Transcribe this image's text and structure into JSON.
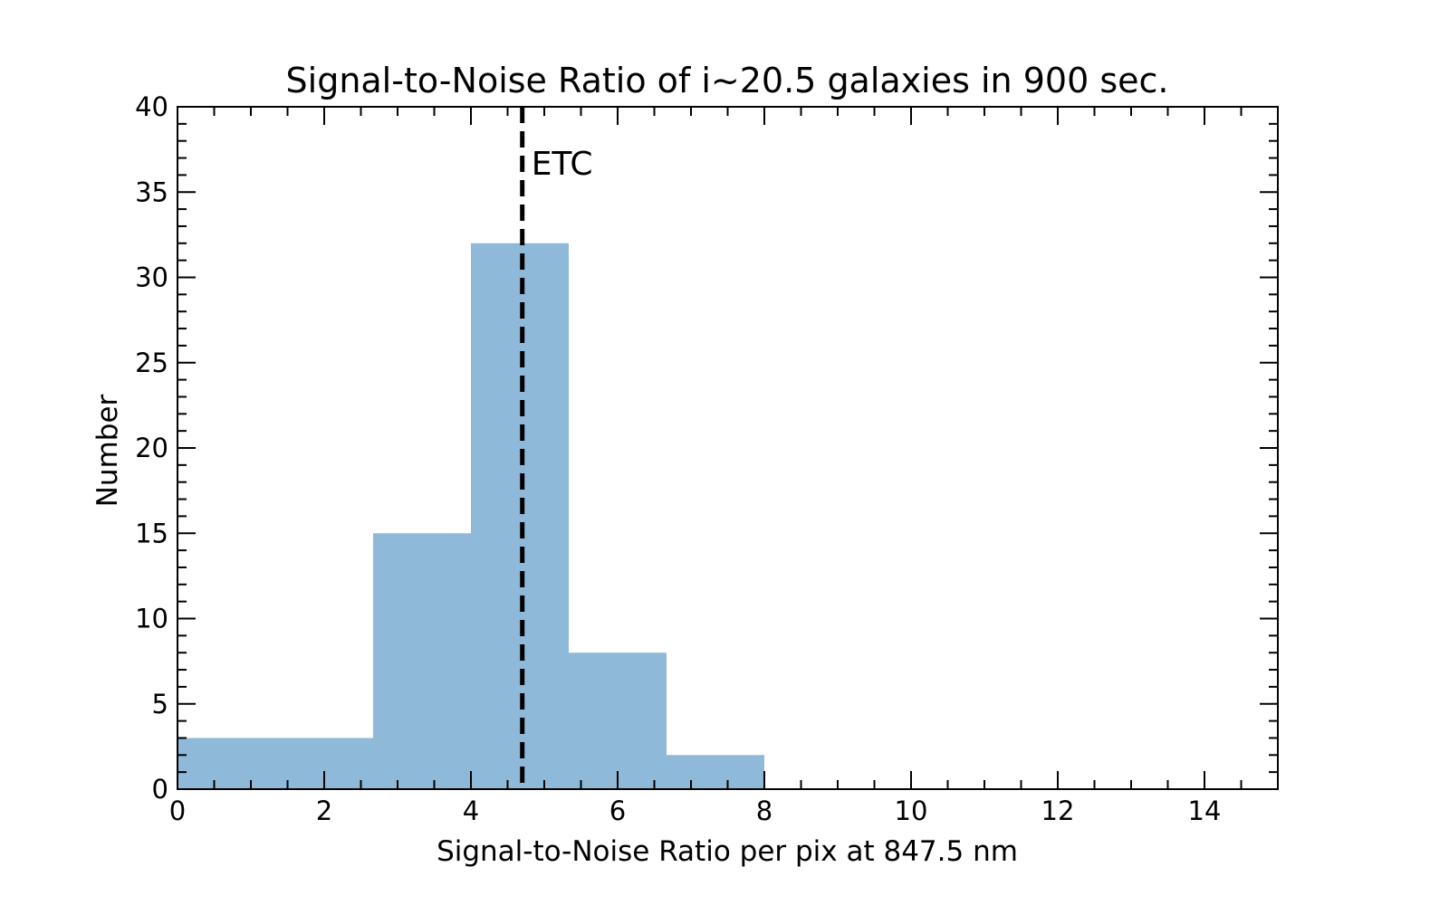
{
  "chart_data": {
    "type": "bar",
    "title": "Signal-to-Noise Ratio of i~20.5 galaxies in 900 sec.",
    "xlabel": "Signal-to-Noise Ratio per pix at 847.5 nm",
    "ylabel": "Number",
    "xlim": [
      0,
      15
    ],
    "ylim": [
      0,
      40
    ],
    "bin_edges": [
      0,
      1.3333,
      2.6667,
      4.0,
      5.3333,
      6.6667,
      8.0
    ],
    "counts": [
      3,
      3,
      15,
      32,
      8,
      2
    ],
    "bar_color": "#8fb9d9",
    "x_ticks": [
      "0",
      "2",
      "4",
      "6",
      "8",
      "10",
      "12",
      "14"
    ],
    "x_tick_values": [
      0,
      2,
      4,
      6,
      8,
      10,
      12,
      14
    ],
    "y_ticks": [
      "0",
      "5",
      "10",
      "15",
      "20",
      "25",
      "30",
      "35",
      "40"
    ],
    "y_tick_values": [
      0,
      5,
      10,
      15,
      20,
      25,
      30,
      35,
      40
    ],
    "reference_line": {
      "x": 4.7,
      "label": "ETC",
      "style": "dashed",
      "color": "#000000"
    },
    "grid": false,
    "legend": "none"
  }
}
